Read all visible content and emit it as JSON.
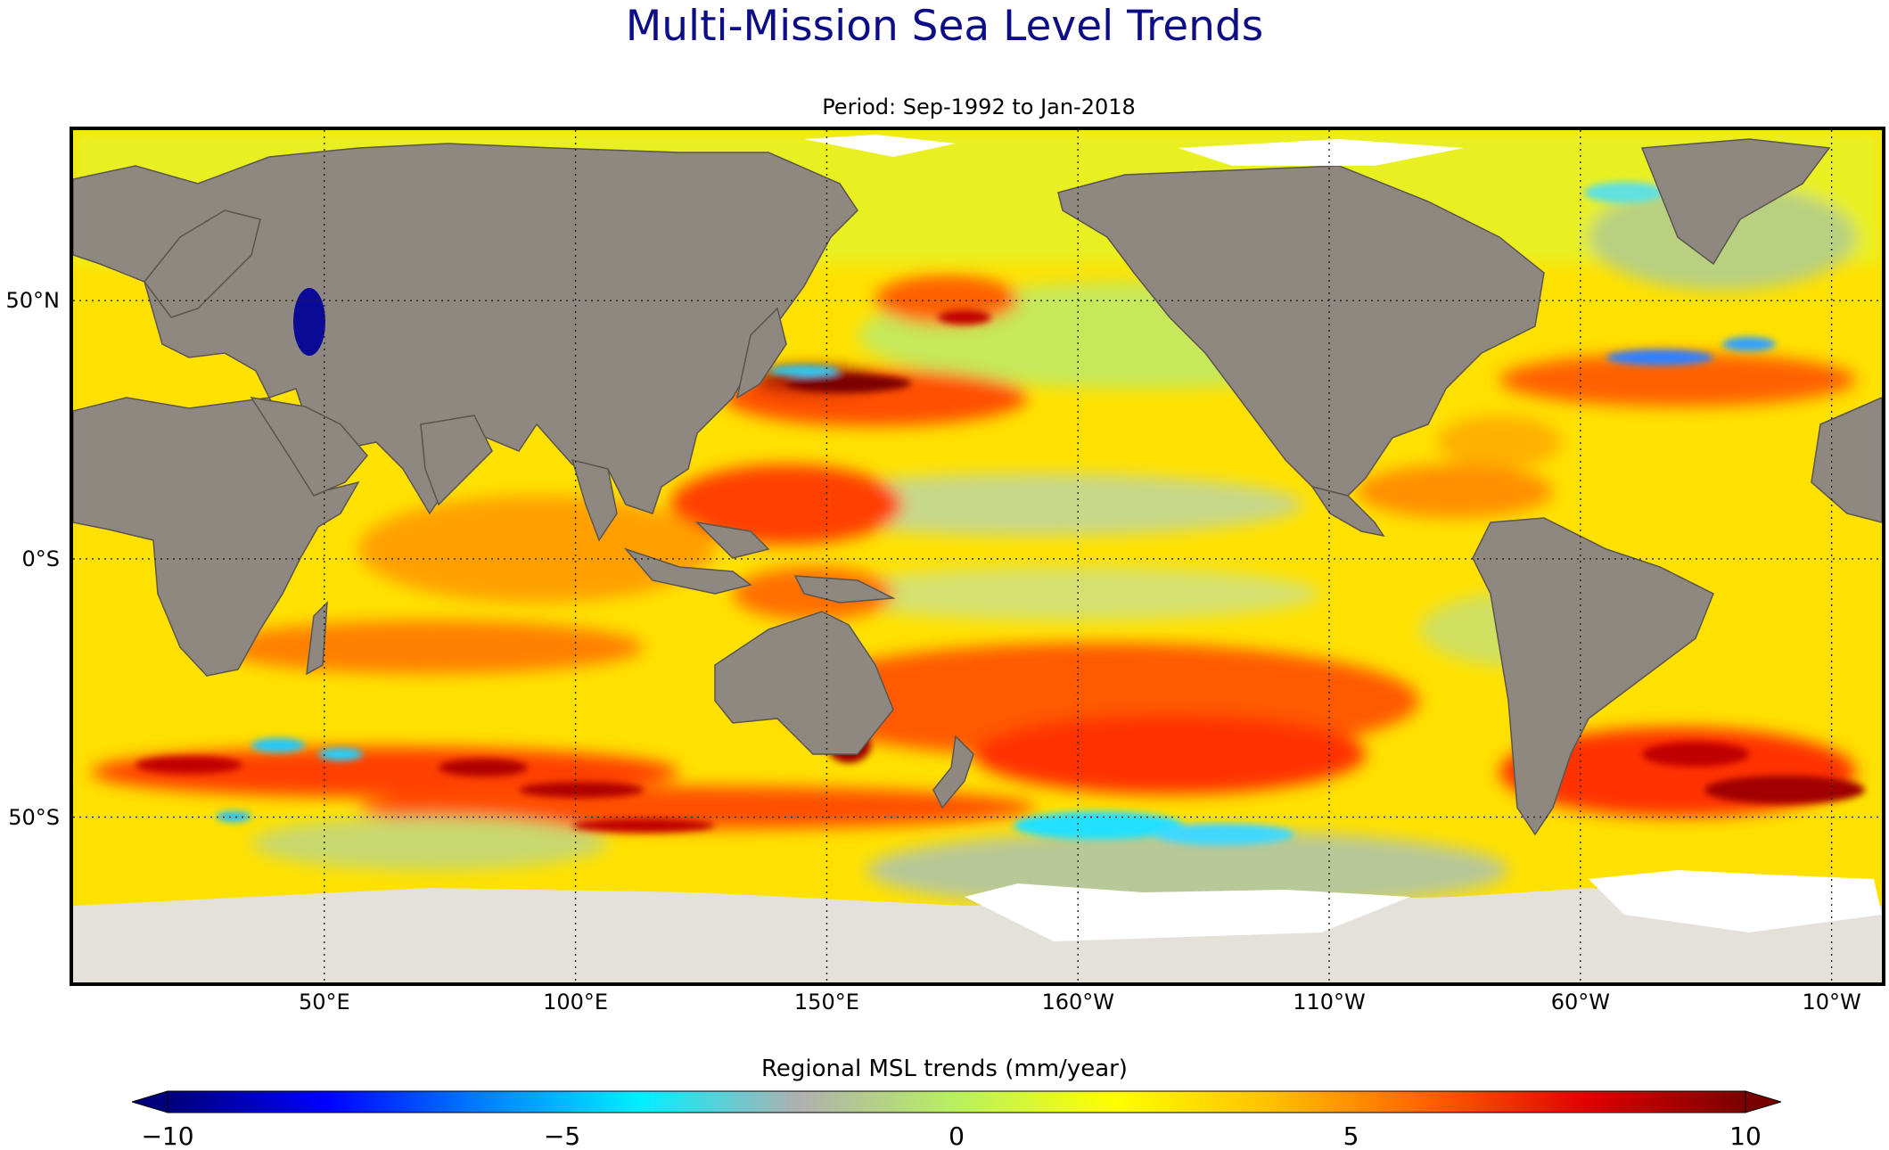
{
  "title": "Multi-Mission Sea Level Trends",
  "subtitle": "Period: Sep-1992 to Jan-2018",
  "map": {
    "projection": "equirectangular",
    "lon_range_east_deg": [
      0,
      360
    ],
    "lat_range_deg": [
      -82,
      83
    ],
    "graticule_style": "dotted",
    "lon_ticks": [
      {
        "lon": 50,
        "label": "50°E"
      },
      {
        "lon": 100,
        "label": "100°E"
      },
      {
        "lon": 150,
        "label": "150°E"
      },
      {
        "lon": 200,
        "label": "160°W"
      },
      {
        "lon": 250,
        "label": "110°W"
      },
      {
        "lon": 300,
        "label": "60°W"
      },
      {
        "lon": 350,
        "label": "10°W"
      }
    ],
    "lat_ticks": [
      {
        "lat": 50,
        "label": "50°N"
      },
      {
        "lat": 0,
        "label": "0°S"
      },
      {
        "lat": -50,
        "label": "50°S"
      }
    ]
  },
  "colorbar": {
    "label": "Regional MSL trends (mm/year)",
    "min": -10,
    "max": 10,
    "extend": "both",
    "ticks": [
      {
        "value": -10,
        "label": "−10"
      },
      {
        "value": -5,
        "label": "−5"
      },
      {
        "value": 0,
        "label": "0"
      },
      {
        "value": 5,
        "label": "5"
      },
      {
        "value": 10,
        "label": "10"
      }
    ],
    "colors": [
      "#00007a",
      "#0000ff",
      "#0080ff",
      "#00f0ff",
      "#b0b0b0",
      "#b8f060",
      "#ffff00",
      "#ffc000",
      "#ff6000",
      "#e00000",
      "#7a0000"
    ]
  },
  "land_color": "#8f8880",
  "ice_color": "#e4e0da"
}
